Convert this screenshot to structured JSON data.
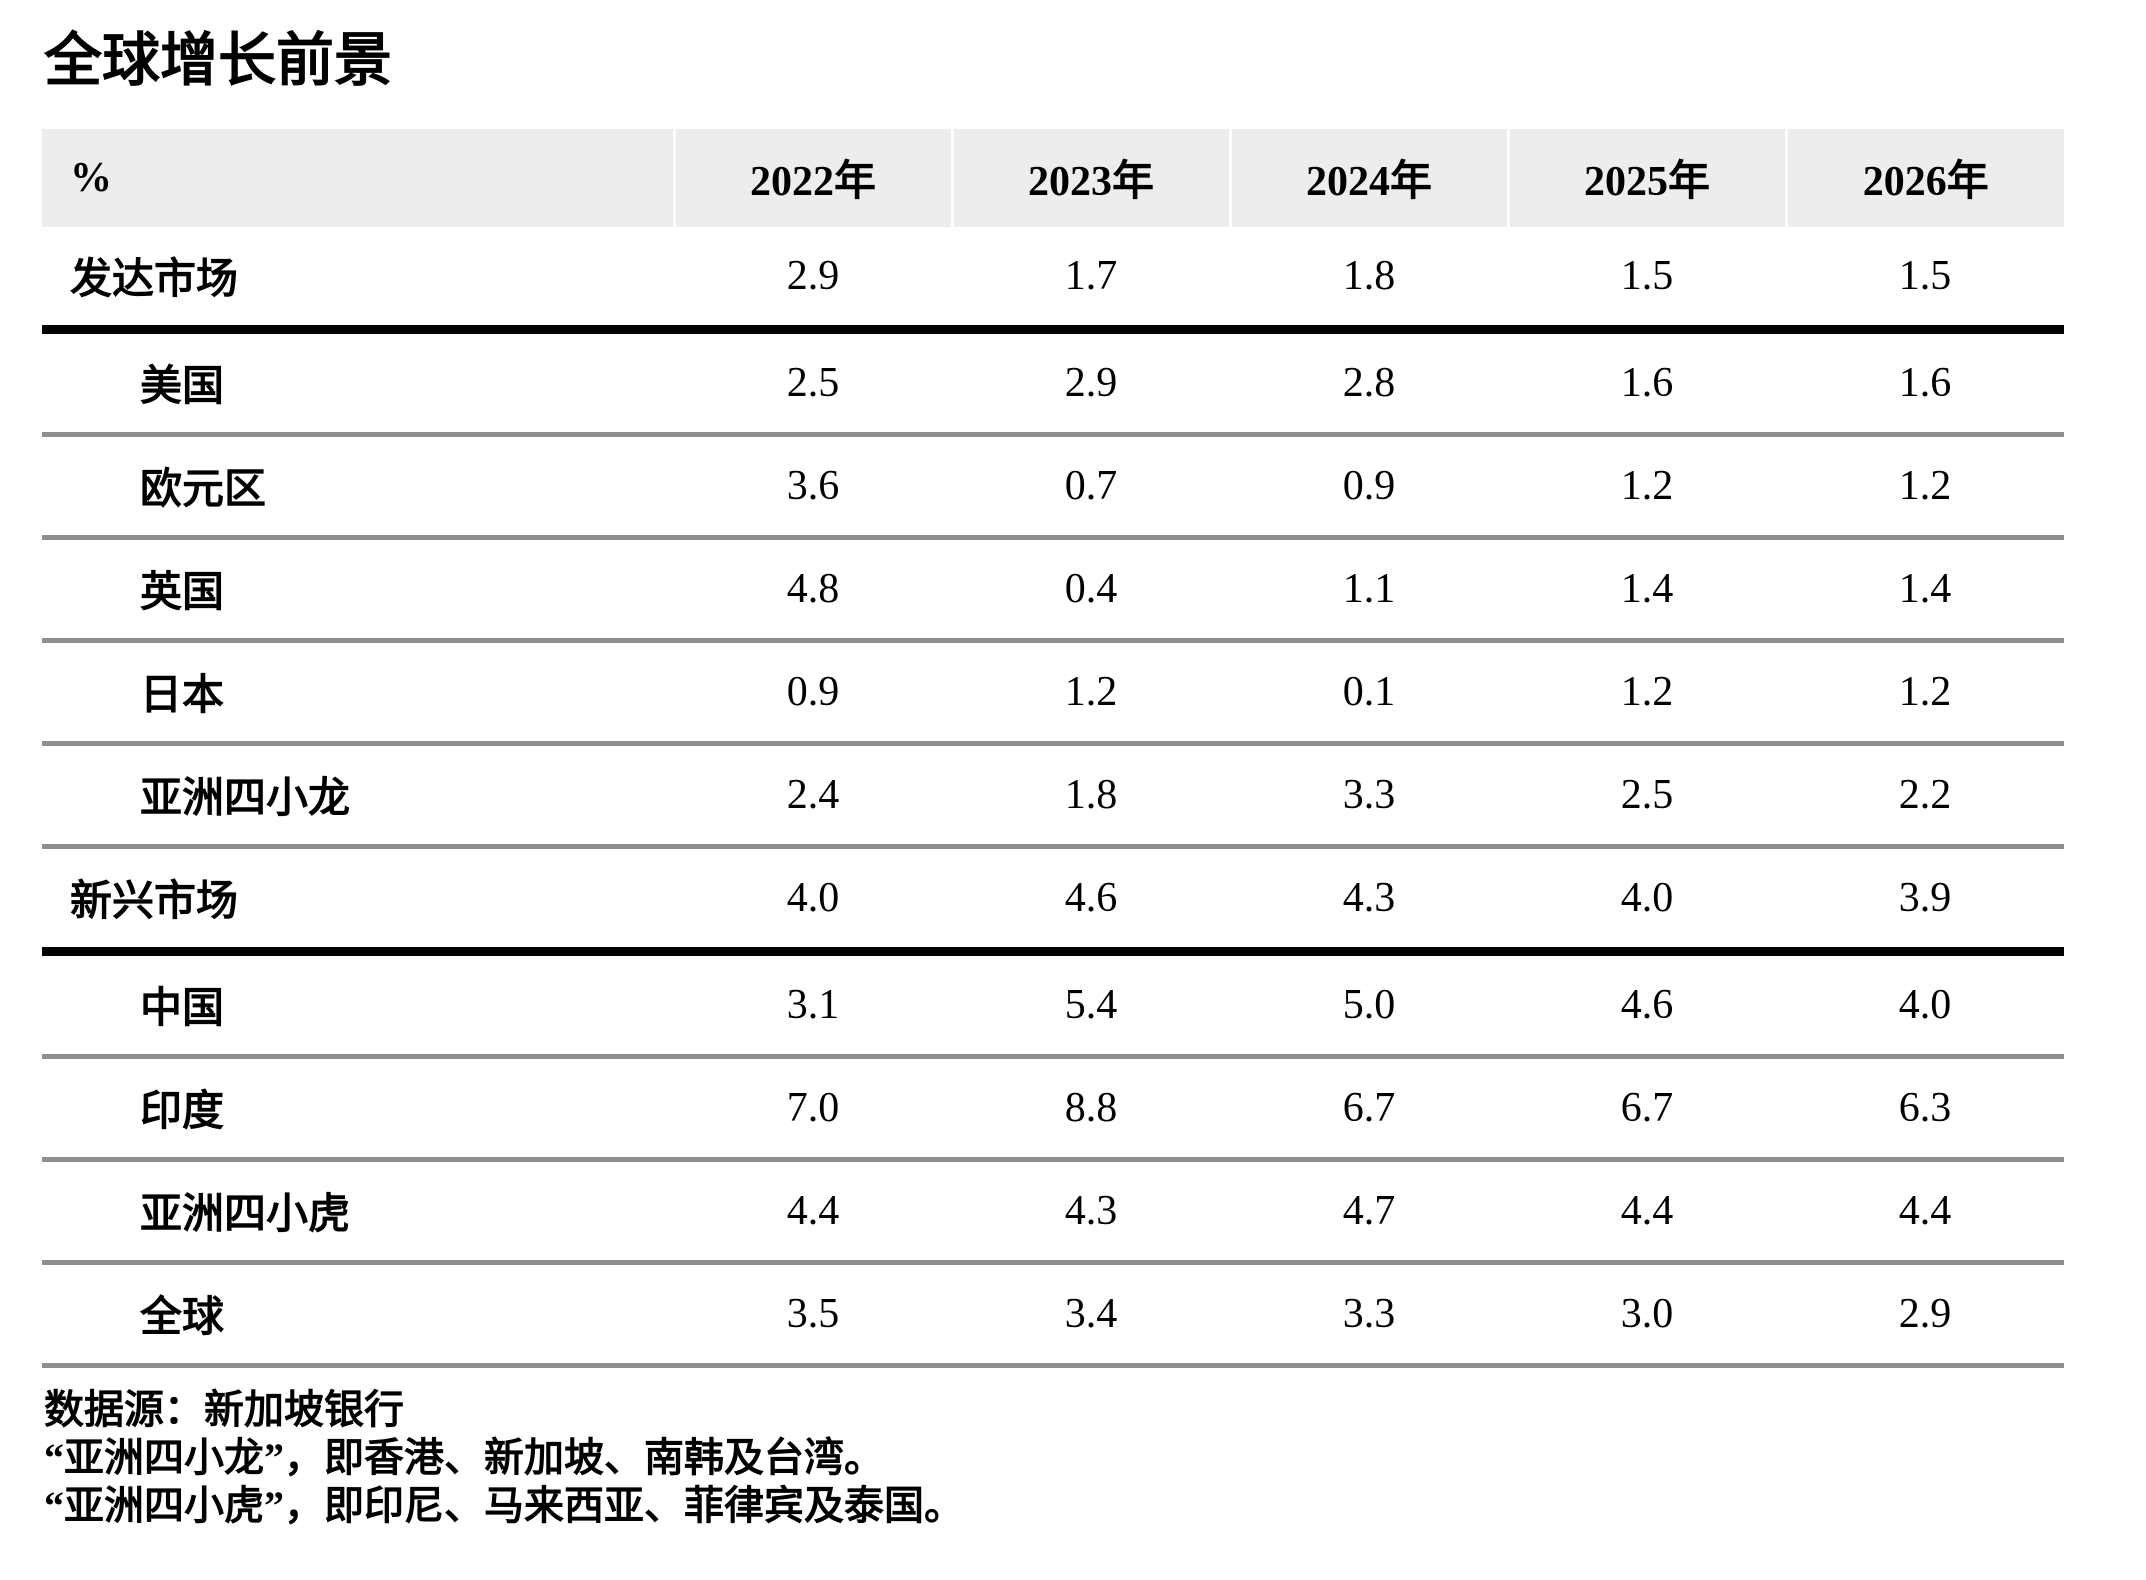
{
  "title": "全球增长前景",
  "chart_data": {
    "type": "table",
    "title": "全球增长前景",
    "unit_label": "%",
    "columns": [
      "2022年",
      "2023年",
      "2024年",
      "2025年",
      "2026年"
    ],
    "rows": [
      {
        "label": "发达市场",
        "group": true,
        "indent": false,
        "values": [
          "2.9",
          "1.7",
          "1.8",
          "1.5",
          "1.5"
        ]
      },
      {
        "label": "美国",
        "group": false,
        "indent": true,
        "values": [
          "2.5",
          "2.9",
          "2.8",
          "1.6",
          "1.6"
        ]
      },
      {
        "label": "欧元区",
        "group": false,
        "indent": true,
        "values": [
          "3.6",
          "0.7",
          "0.9",
          "1.2",
          "1.2"
        ]
      },
      {
        "label": "英国",
        "group": false,
        "indent": true,
        "values": [
          "4.8",
          "0.4",
          "1.1",
          "1.4",
          "1.4"
        ]
      },
      {
        "label": "日本",
        "group": false,
        "indent": true,
        "values": [
          "0.9",
          "1.2",
          "0.1",
          "1.2",
          "1.2"
        ]
      },
      {
        "label": "亚洲四小龙",
        "group": false,
        "indent": true,
        "values": [
          "2.4",
          "1.8",
          "3.3",
          "2.5",
          "2.2"
        ]
      },
      {
        "label": "新兴市场",
        "group": true,
        "indent": false,
        "values": [
          "4.0",
          "4.6",
          "4.3",
          "4.0",
          "3.9"
        ]
      },
      {
        "label": "中国",
        "group": false,
        "indent": true,
        "values": [
          "3.1",
          "5.4",
          "5.0",
          "4.6",
          "4.0"
        ]
      },
      {
        "label": "印度",
        "group": false,
        "indent": true,
        "values": [
          "7.0",
          "8.8",
          "6.7",
          "6.7",
          "6.3"
        ]
      },
      {
        "label": "亚洲四小虎",
        "group": false,
        "indent": true,
        "values": [
          "4.4",
          "4.3",
          "4.7",
          "4.4",
          "4.4"
        ]
      },
      {
        "label": "全球",
        "group": false,
        "indent": true,
        "values": [
          "3.5",
          "3.4",
          "3.3",
          "3.0",
          "2.9"
        ]
      }
    ],
    "footnotes": [
      "数据源：新加坡银行",
      "“亚洲四小龙”，即香港、新加坡、南韩及台湾。",
      "“亚洲四小虎”，即印尼、马来西亚、菲律宾及泰国。"
    ],
    "legend_position": "none",
    "grid": "horizontal-rules"
  },
  "colors": {
    "header_bg": "#ededee",
    "thick_rule": "#000000",
    "thin_rule": "#8e8e8e",
    "text": "#000000",
    "background": "#ffffff"
  }
}
